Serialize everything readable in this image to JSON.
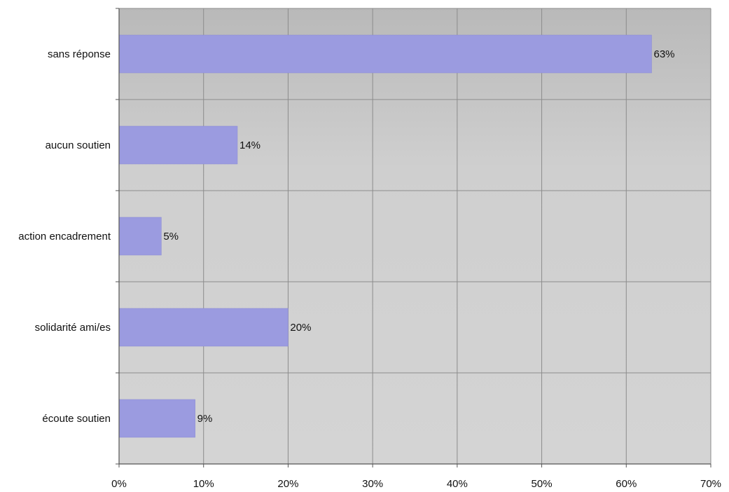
{
  "chart_data": {
    "type": "bar",
    "orientation": "horizontal",
    "categories": [
      "sans réponse",
      "aucun soutien",
      "action encadrement",
      "solidarité ami/es",
      "écoute soutien"
    ],
    "values": [
      63,
      14,
      5,
      20,
      9
    ],
    "data_labels": [
      "63%",
      "14%",
      "5%",
      "20%",
      "9%"
    ],
    "xlim": [
      0,
      70
    ],
    "xticks": [
      0,
      10,
      20,
      30,
      40,
      50,
      60,
      70
    ],
    "xtick_labels": [
      "0%",
      "10%",
      "20%",
      "30%",
      "40%",
      "50%",
      "60%",
      "70%"
    ],
    "grid": true,
    "legend": "none",
    "colors": {
      "bar": "#9b9be0",
      "bar_edge": "#8a8ad4",
      "plot_background": "#c8c8c8",
      "gridline": "#8c8c8c",
      "axis": "#555555"
    }
  }
}
